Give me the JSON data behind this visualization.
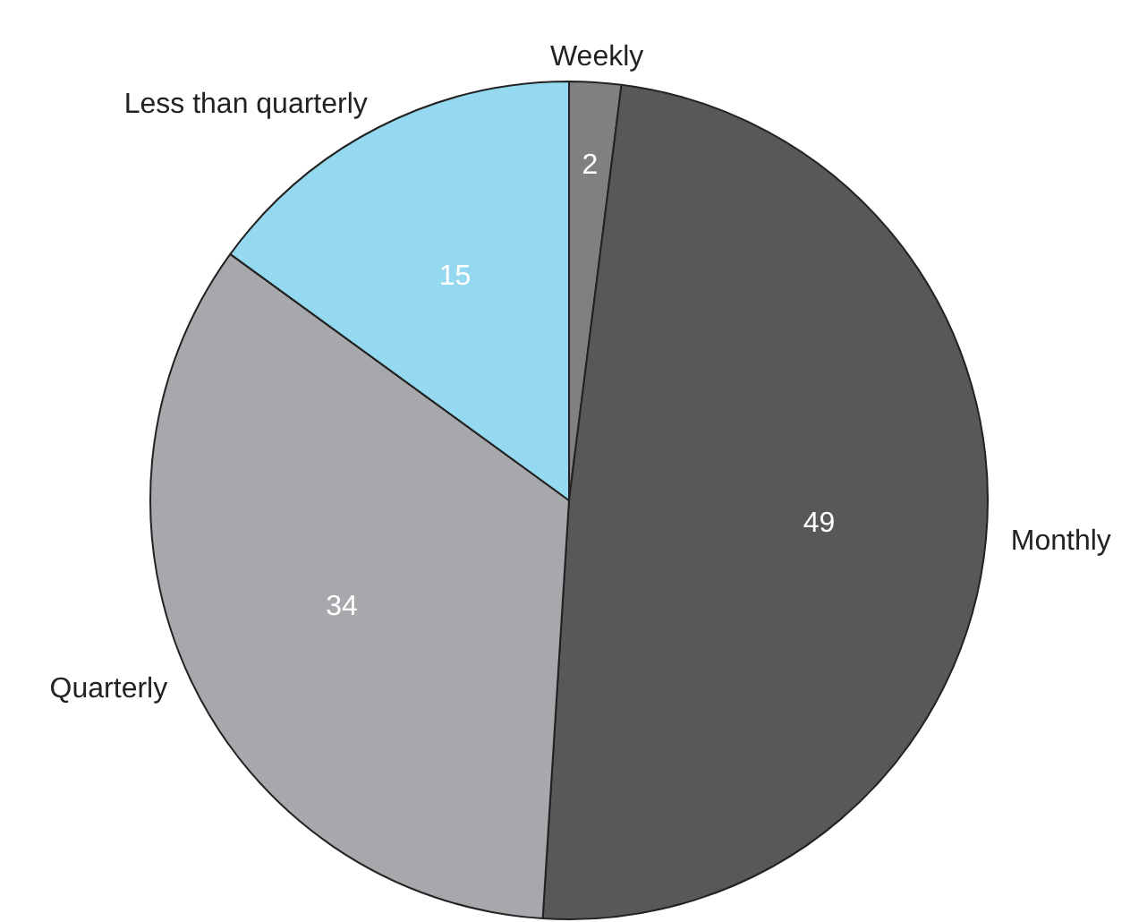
{
  "chart_data": {
    "type": "pie",
    "categories": [
      "Weekly",
      "Monthly",
      "Quarterly",
      "Less than quarterly"
    ],
    "values": [
      2,
      49,
      34,
      15
    ],
    "colors": [
      "#808083",
      "#58585a",
      "#a7a8ab",
      "#94d9f0"
    ],
    "data_labels": true,
    "legend": false
  }
}
